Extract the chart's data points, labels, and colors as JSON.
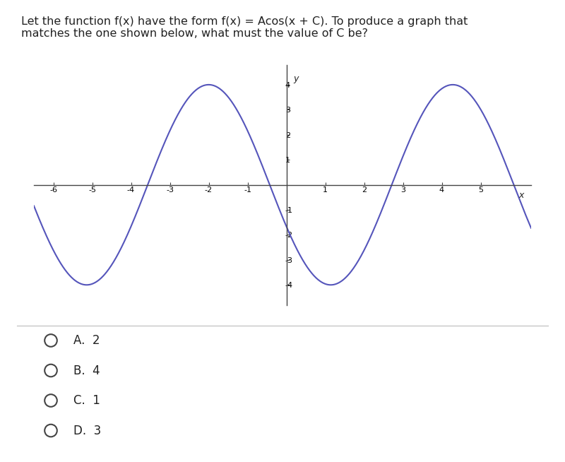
{
  "title_text": "Let the function f(x) have the form f(x) = Acos(x + C). To produce a graph that\nmatches the one shown below, what must the value of C be?",
  "A": 4,
  "C": 2,
  "x_min": -6.5,
  "x_max": 6.3,
  "y_min": -4.8,
  "y_max": 4.8,
  "x_ticks": [
    -6,
    -5,
    -4,
    -3,
    -2,
    -1,
    1,
    2,
    3,
    4,
    5
  ],
  "y_ticks_pos": [
    1,
    2,
    3,
    4
  ],
  "y_ticks_neg": [
    -1,
    -2,
    -3,
    -4
  ],
  "curve_color": "#5555bb",
  "curve_linewidth": 1.5,
  "axis_color": "#444444",
  "answer_choices": [
    "A.  2",
    "B.  4",
    "C.  1",
    "D.  3"
  ],
  "question_fontsize": 11.5,
  "answer_fontsize": 12,
  "background_color": "#ffffff",
  "tick_label_fontsize": 8,
  "x_label": "x",
  "y_label": "y"
}
